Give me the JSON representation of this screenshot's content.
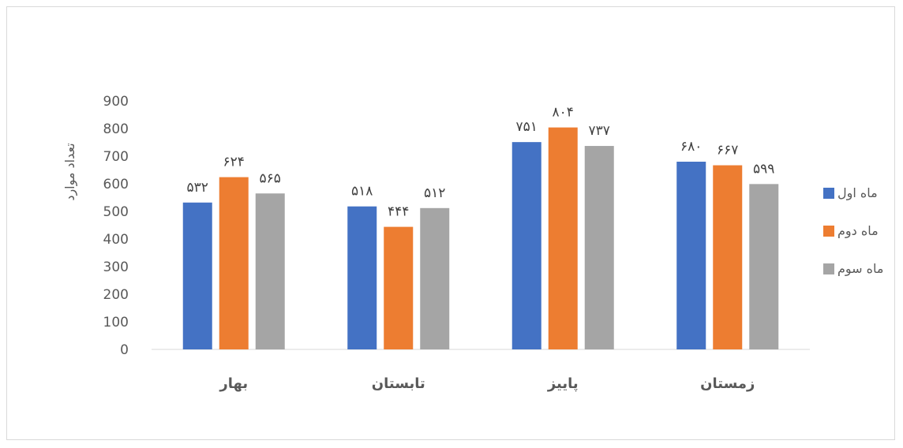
{
  "chart_data": {
    "type": "bar",
    "title": "",
    "xlabel": "",
    "ylabel": "تعداد موارد",
    "ylim": [
      0,
      900
    ],
    "yticks": [
      0,
      100,
      200,
      300,
      400,
      500,
      600,
      700,
      800,
      900
    ],
    "grid": false,
    "legend_position": "right",
    "categories": [
      "بهار",
      "تابستان",
      "پاییز",
      "زمستان"
    ],
    "series": [
      {
        "name": "ماه اول",
        "color": "#4472C4",
        "values": [
          532,
          518,
          751,
          680
        ],
        "labels": [
          "۵۳۲",
          "۵۱۸",
          "۷۵۱",
          "۶۸۰"
        ]
      },
      {
        "name": "ماه دوم",
        "color": "#ED7D31",
        "values": [
          624,
          444,
          804,
          667
        ],
        "labels": [
          "۶۲۴",
          "۴۴۴",
          "۸۰۴",
          "۶۶۷"
        ]
      },
      {
        "name": "ماه سوم",
        "color": "#A5A5A5",
        "values": [
          565,
          512,
          737,
          599
        ],
        "labels": [
          "۵۶۵",
          "۵۱۲",
          "۷۳۷",
          "۵۹۹"
        ]
      }
    ]
  }
}
